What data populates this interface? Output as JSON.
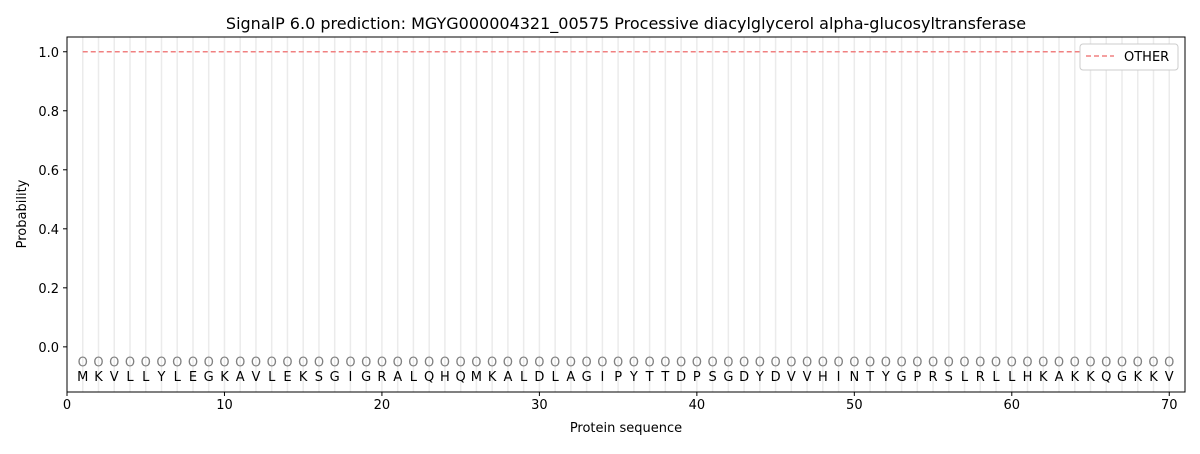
{
  "chart_data": {
    "type": "line",
    "title": "SignalP 6.0 prediction: MGYG000004321_00575 Processive diacylglycerol alpha-glucosyltransferase",
    "xlabel": "Protein sequence",
    "ylabel": "Probability",
    "xlim": [
      0,
      71
    ],
    "ylim": [
      -0.153,
      1.05
    ],
    "xticks": [
      0,
      10,
      20,
      30,
      40,
      50,
      60,
      70
    ],
    "yticks": [
      0.0,
      0.2,
      0.4,
      0.6,
      0.8,
      1.0
    ],
    "ytick_labels": [
      "0.0",
      "0.2",
      "0.4",
      "0.6",
      "0.8",
      "1.0"
    ],
    "grid": "vertical lines at each residue",
    "legend_position": "top-right",
    "series": [
      {
        "name": "OTHER",
        "color": "#f08080",
        "style": "dashed",
        "x_range": [
          1,
          70
        ],
        "value": 1.0
      }
    ],
    "sequence": [
      "M",
      "K",
      "V",
      "L",
      "L",
      "Y",
      "L",
      "E",
      "G",
      "K",
      "A",
      "V",
      "L",
      "E",
      "K",
      "S",
      "G",
      "I",
      "G",
      "R",
      "A",
      "L",
      "Q",
      "H",
      "Q",
      "M",
      "K",
      "A",
      "L",
      "D",
      "L",
      "A",
      "G",
      "I",
      "P",
      "Y",
      "T",
      "T",
      "D",
      "P",
      "S",
      "G",
      "D",
      "Y",
      "D",
      "V",
      "V",
      "H",
      "I",
      "N",
      "T",
      "Y",
      "G",
      "P",
      "R",
      "S",
      "L",
      "R",
      "L",
      "L",
      "H",
      "K",
      "A",
      "K",
      "K",
      "Q",
      "G",
      "K",
      "K",
      "V"
    ],
    "predicted_labels": "OOOOOOOOOOOOOOOOOOOOOOOOOOOOOOOOOOOOOOOOOOOOOOOOOOOOOOOOOOOOOOOOOOOOOO"
  }
}
